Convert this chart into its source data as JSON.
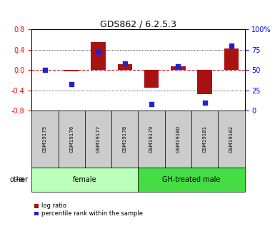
{
  "title": "GDS862 / 6.2.5.3",
  "samples": [
    "GSM19175",
    "GSM19176",
    "GSM19177",
    "GSM19178",
    "GSM19179",
    "GSM19180",
    "GSM19181",
    "GSM19182"
  ],
  "log_ratio": [
    0.0,
    -0.03,
    0.55,
    0.12,
    -0.35,
    0.08,
    -0.48,
    0.42
  ],
  "percentile_rank": [
    50,
    33,
    72,
    58,
    8,
    55,
    10,
    80
  ],
  "groups": [
    {
      "label": "female",
      "start": 0,
      "end": 4,
      "color": "#bbffbb"
    },
    {
      "label": "GH-treated male",
      "start": 4,
      "end": 8,
      "color": "#44dd44"
    }
  ],
  "ylim_left": [
    -0.8,
    0.8
  ],
  "ylim_right": [
    0,
    100
  ],
  "left_ticks": [
    -0.8,
    -0.4,
    0.0,
    0.4,
    0.8
  ],
  "right_ticks": [
    0,
    25,
    50,
    75,
    100
  ],
  "bar_color": "#aa1111",
  "dot_color": "#2222cc",
  "zero_line_color": "#cc2222",
  "grid_color": "#555555",
  "bar_width": 0.55,
  "legend_items": [
    "log ratio",
    "percentile rank within the sample"
  ],
  "other_label": "other",
  "sample_box_color": "#cccccc",
  "title_fontsize": 9,
  "tick_fontsize": 7,
  "label_fontsize": 7,
  "legend_fontsize": 6
}
